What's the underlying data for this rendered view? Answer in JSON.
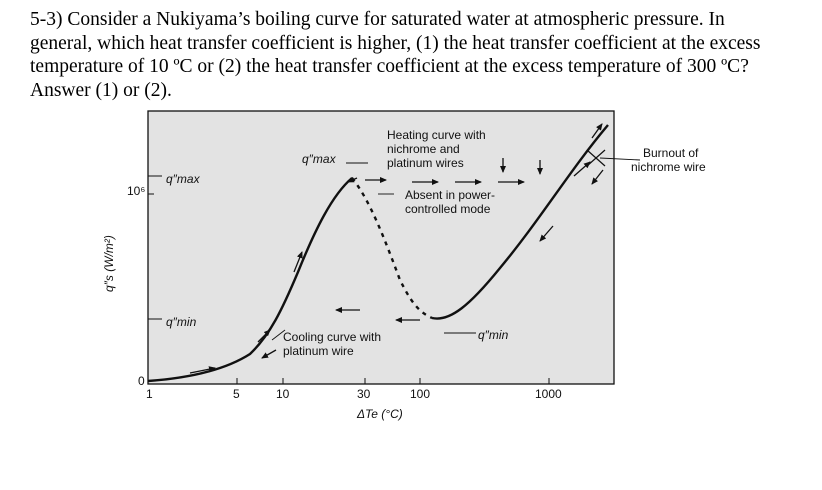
{
  "question": {
    "lines": [
      "5-3) Consider a Nukiyama’s boiling curve for saturated water at atmospheric pressure. In",
      "general, which heat transfer coefficient is higher, (1) the heat transfer coefficient at the excess",
      "temperature of 10 ºC or (2) the heat transfer coefficient at the excess temperature of 300 ºC?",
      "Answer (1) or (2)."
    ]
  },
  "figure": {
    "y_axis_label": "q″s (W/m²)",
    "x_axis_label": "ΔTe (°C)",
    "y_ticks": [
      "10⁶",
      "0"
    ],
    "x_ticks": [
      "1",
      "5",
      "10",
      "30",
      "100",
      "1000"
    ],
    "qmax_left_label": "q″max",
    "qmin_left_label": "q″min",
    "qmax_curve_label": "q″max",
    "qmin_curve_label": "q″min",
    "heating_curve_label": [
      "Heating curve with",
      "nichrome and",
      "platinum wires"
    ],
    "absent_label": [
      "Absent in power-",
      "controlled mode"
    ],
    "cooling_curve_label": [
      "Cooling curve with",
      "platinum wire"
    ],
    "burnout_label": [
      "Burnout of",
      "nichrome wire"
    ]
  }
}
